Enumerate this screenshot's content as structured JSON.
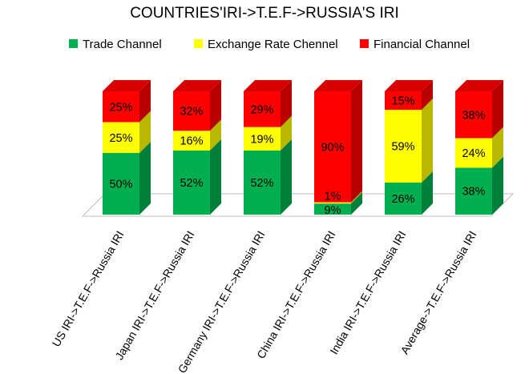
{
  "chart_data": {
    "type": "bar",
    "stacked": true,
    "three_d": true,
    "title": "COUNTRIES'IRI->T.E.F->RUSSIA'S IRI",
    "categories": [
      "US IRI->T.E.F->Russia IRI",
      "Japan IRI->T.E.F->Russia IRI",
      "Germany IRI->T.E.F->Russia  IRI",
      "China IRI->T.E.F->Russia IRI",
      "India IRI->T.E.F->Russia IRI",
      "Average->T.E.F->Russia IRI"
    ],
    "series": [
      {
        "name": "Trade Channel",
        "color": "#00b050",
        "values": [
          50,
          52,
          52,
          9,
          26,
          38
        ],
        "labels": [
          "50%",
          "52%",
          "52%",
          "9%",
          "26%",
          "38%"
        ]
      },
      {
        "name": "Exchange Rate Chennel",
        "color": "#ffff00",
        "values": [
          25,
          16,
          19,
          1,
          59,
          24
        ],
        "labels": [
          "25%",
          "16%",
          "19%",
          "1%",
          "59%",
          "24%"
        ]
      },
      {
        "name": "Financial Channel",
        "color": "#ff0000",
        "values": [
          25,
          32,
          29,
          90,
          15,
          38
        ],
        "labels": [
          "25%",
          "32%",
          "29%",
          "90%",
          "15%",
          "38%"
        ]
      }
    ],
    "ylim": [
      0,
      100
    ],
    "legend_position": "top",
    "grid": false
  }
}
